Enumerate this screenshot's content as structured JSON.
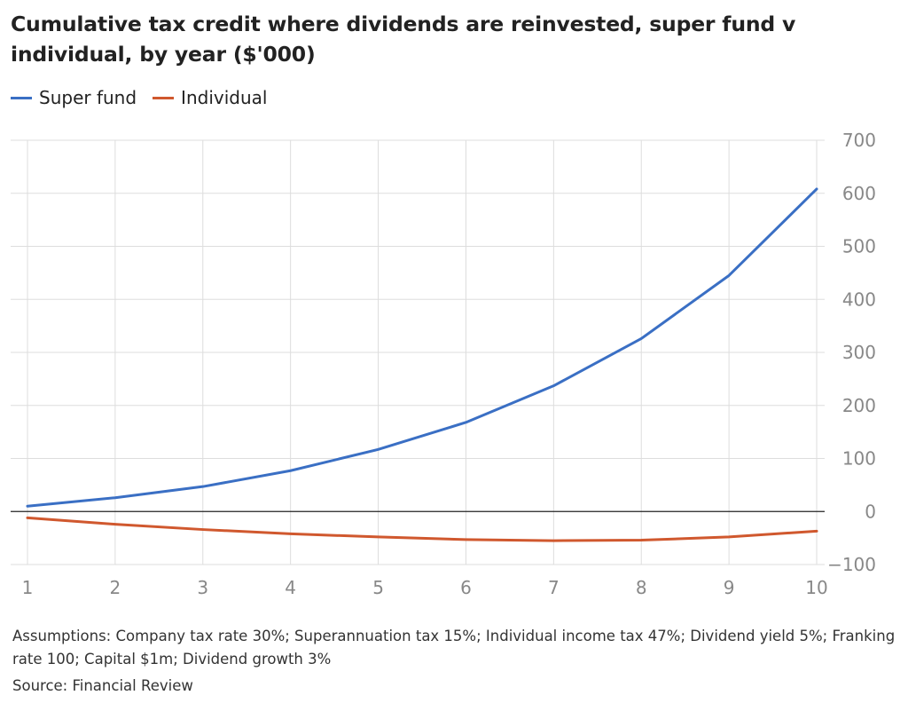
{
  "chart_data": {
    "type": "line",
    "title": "Cumulative tax credit where dividends are reinvested, super fund v individual, by year ($'000)",
    "x": [
      1,
      2,
      3,
      4,
      5,
      6,
      7,
      8,
      9,
      10
    ],
    "series": [
      {
        "name": "Super fund",
        "color": "#3a6fc4",
        "values": [
          10,
          26,
          47,
          77,
          117,
          168,
          237,
          326,
          445,
          608
        ]
      },
      {
        "name": "Individual",
        "color": "#d0582e",
        "values": [
          -12,
          -24,
          -34,
          -42,
          -48,
          -53,
          -55,
          -54,
          -48,
          -37
        ]
      }
    ],
    "ylim": [
      -100,
      700
    ],
    "yticks": [
      700,
      600,
      500,
      400,
      300,
      200,
      100,
      0,
      -100
    ],
    "ytick_labels": [
      "700",
      "600",
      "500",
      "400",
      "300",
      "200",
      "100",
      "0",
      "−100"
    ],
    "xticks": [
      "1",
      "2",
      "3",
      "4",
      "5",
      "6",
      "7",
      "8",
      "9",
      "10"
    ],
    "grid": true,
    "legend_position": "top-left",
    "notes": "Assumptions: Company tax rate 30%; Superannuation tax 15%; Individual income tax 47%; Dividend yield 5%; Franking rate 100; Capital $1m; Dividend growth 3%",
    "source": "Source: Financial Review"
  }
}
